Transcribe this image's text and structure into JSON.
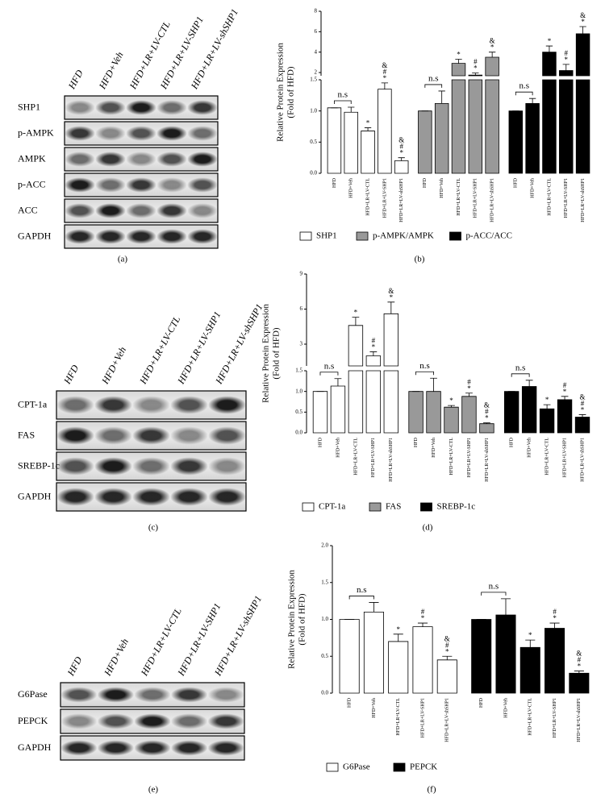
{
  "blots": [
    {
      "lanes": [
        "HFD",
        "HFD+Veh",
        "HFD+LR+LV-CTL",
        "HFD+LR+LV-SHP1",
        "HFD+LR+LV-shSHP1"
      ],
      "rows": [
        "SHP1",
        "p-AMPK",
        "AMPK",
        "p-ACC",
        "ACC",
        "GAPDH"
      ],
      "caption": "(a)"
    },
    {
      "lanes": [
        "HFD",
        "HFD+Veh",
        "HFD+LR+LV-CTL",
        "HFD+LR+LV-SHP1",
        "HFD+LR+LV-shSHP1"
      ],
      "rows": [
        "CPT-1a",
        "FAS",
        "SREBP-1c",
        "GAPDH"
      ],
      "caption": "(c)"
    },
    {
      "lanes": [
        "HFD",
        "HFD+Veh",
        "HFD+LR+LV-CTL",
        "HFD+LR+LV-SHP1",
        "HFD+LR+LV-shSHP1"
      ],
      "rows": [
        "G6Pase",
        "PEPCK",
        "GAPDH"
      ],
      "caption": "(e)"
    }
  ],
  "chart_data": [
    {
      "type": "bar",
      "ylabel": [
        "Relative Protein Expression",
        "(Fold of HFD)"
      ],
      "categories": [
        "HFD",
        "HFD+Veh",
        "HFD+LR+LV-CTL",
        "HFD+LR+LV-SHP1",
        "HFD+LR+LV-shSHP1"
      ],
      "ylim": [
        0,
        8
      ],
      "ybreak": [
        1.5,
        2
      ],
      "yticks": [
        {
          "value": 0,
          "label": "0.0"
        },
        0.5,
        {
          "value": 1,
          "label": "1.0"
        },
        1.5,
        2,
        4,
        6,
        8
      ],
      "series": [
        {
          "name": "SHP1",
          "color": "#ffffff",
          "values": [
            1.05,
            0.98,
            0.68,
            1.35,
            0.2
          ],
          "errors": [
            0,
            0.08,
            0.05,
            0.1,
            0.05
          ],
          "marks": [
            [],
            [],
            [
              "*"
            ],
            [
              "&",
              "#",
              "*"
            ],
            [
              "&",
              "#",
              "*"
            ]
          ],
          "bracket": "n.s"
        },
        {
          "name": "p-AMPK/AMPK",
          "color": "#999999",
          "values": [
            1.0,
            1.12,
            2.9,
            1.75,
            3.5
          ],
          "errors": [
            0,
            0.2,
            0.4,
            0.2,
            0.5
          ],
          "marks": [
            [],
            [],
            [
              "*"
            ],
            [
              "#",
              "*"
            ],
            [
              "&",
              "*"
            ]
          ],
          "bracket": "n.s"
        },
        {
          "name": "p-ACC/ACC",
          "color": "#000000",
          "values": [
            1.0,
            1.12,
            4.0,
            2.2,
            5.8
          ],
          "errors": [
            0,
            0.08,
            0.6,
            0.6,
            0.7
          ],
          "marks": [
            [],
            [],
            [
              "*"
            ],
            [
              "#",
              "*"
            ],
            [
              "&",
              "*"
            ]
          ],
          "bracket": "n.s"
        }
      ],
      "caption": "(b)"
    },
    {
      "type": "bar",
      "ylabel": [
        "Relative Protein Expression",
        "(Fold of HFD)"
      ],
      "categories": [
        "HFD",
        "HFD+Veh",
        "HFD+LR+LV-CTL",
        "HFD+LR+LV-SHP1",
        "HFD+LR+LV-shSHP1"
      ],
      "ylim": [
        0,
        9
      ],
      "ybreak": [
        1.5,
        3
      ],
      "yticks": [
        {
          "value": 0,
          "label": "0.0"
        },
        0.5,
        {
          "value": 1,
          "label": "1.0"
        },
        1.5,
        3,
        6,
        9
      ],
      "series": [
        {
          "name": "CPT-1a",
          "color": "#ffffff",
          "values": [
            1.0,
            1.13,
            4.6,
            2.0,
            5.6
          ],
          "errors": [
            0,
            0.18,
            0.7,
            0.35,
            1.0
          ],
          "marks": [
            [],
            [],
            [
              "*"
            ],
            [
              "#",
              "*"
            ],
            [
              "&",
              "*"
            ]
          ],
          "bracket": "n.s"
        },
        {
          "name": "FAS",
          "color": "#999999",
          "values": [
            1.0,
            1.0,
            0.62,
            0.88,
            0.22
          ],
          "errors": [
            0,
            0.32,
            0.04,
            0.08,
            0.02
          ],
          "marks": [
            [],
            [],
            [
              "*"
            ],
            [
              "#",
              "*"
            ],
            [
              "&",
              "#",
              "*"
            ]
          ],
          "bracket": "n.s"
        },
        {
          "name": "SREBP-1c",
          "color": "#000000",
          "values": [
            1.0,
            1.12,
            0.58,
            0.8,
            0.38
          ],
          "errors": [
            0,
            0.15,
            0.1,
            0.08,
            0.06
          ],
          "marks": [
            [],
            [],
            [
              "*"
            ],
            [
              "#",
              "*"
            ],
            [
              "&",
              "#",
              "*"
            ]
          ],
          "bracket": "n.s"
        }
      ],
      "caption": "(d)"
    },
    {
      "type": "bar",
      "ylabel": [
        "Relative Protein Expression",
        "(Fold of HFD)"
      ],
      "categories": [
        "HFD",
        "HFD+Veh",
        "HFD+LR+LV-CTL",
        "HFD+LR+LV-SHP1",
        "HFD+LR+LV-shSHP1"
      ],
      "ylim": [
        0,
        2
      ],
      "yticks": [
        {
          "value": 0,
          "label": "0.0"
        },
        0.5,
        {
          "value": 1,
          "label": "1.0"
        },
        1.5,
        {
          "value": 2,
          "label": "2.0"
        }
      ],
      "series": [
        {
          "name": "G6Pase",
          "color": "#ffffff",
          "values": [
            1.0,
            1.1,
            0.7,
            0.9,
            0.45
          ],
          "errors": [
            0,
            0.13,
            0.1,
            0.05,
            0.05
          ],
          "marks": [
            [],
            [],
            [
              "*"
            ],
            [
              "#",
              "*"
            ],
            [
              "&",
              "#",
              "*"
            ]
          ],
          "bracket": "n.s"
        },
        {
          "name": "PEPCK",
          "color": "#000000",
          "values": [
            1.0,
            1.06,
            0.62,
            0.88,
            0.27
          ],
          "errors": [
            0,
            0.22,
            0.1,
            0.07,
            0.03
          ],
          "marks": [
            [],
            [],
            [
              "*"
            ],
            [
              "#",
              "*"
            ],
            [
              "&",
              "#",
              "*"
            ]
          ],
          "bracket": "n.s"
        }
      ],
      "caption": "(f)"
    }
  ]
}
